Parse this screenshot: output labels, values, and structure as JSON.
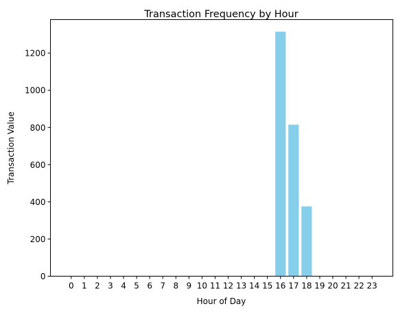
{
  "chart_data": {
    "type": "bar",
    "title": "Transaction Frequency by Hour",
    "xlabel": "Hour of Day",
    "ylabel": "Transaction Value",
    "categories": [
      "0",
      "1",
      "2",
      "3",
      "4",
      "5",
      "6",
      "7",
      "8",
      "9",
      "10",
      "11",
      "12",
      "13",
      "14",
      "15",
      "16",
      "17",
      "18",
      "19",
      "20",
      "21",
      "22",
      "23"
    ],
    "values": [
      0,
      0,
      0,
      0,
      0,
      0,
      0,
      0,
      0,
      0,
      0,
      0,
      0,
      0,
      0,
      0,
      1315,
      815,
      375,
      0,
      0,
      0,
      0,
      0
    ],
    "ylim": [
      0,
      1380
    ],
    "yticks": [
      0,
      200,
      400,
      600,
      800,
      1000,
      1200
    ],
    "grid": false,
    "bar_color": "#87ceeb"
  }
}
